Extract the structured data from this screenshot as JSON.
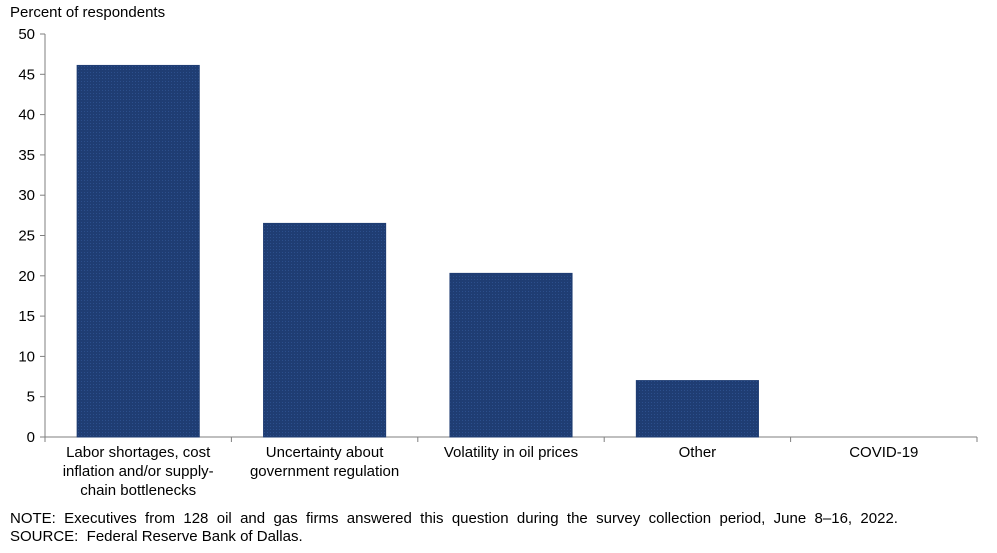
{
  "chart_data": {
    "type": "bar",
    "ylabel": "Percent of respondents",
    "categories": [
      [
        "Labor shortages, cost",
        "inflation and/or supply-",
        "chain bottlenecks"
      ],
      [
        "Uncertainty about",
        "government regulation"
      ],
      [
        "Volatility in oil prices"
      ],
      [
        "Other"
      ],
      [
        "COVID-19"
      ]
    ],
    "values": [
      46.1,
      26.5,
      20.3,
      7.0,
      0.0
    ],
    "ylim": [
      0,
      50
    ],
    "yticks": [
      0,
      5,
      10,
      15,
      20,
      25,
      30,
      35,
      40,
      45,
      50
    ],
    "bar_color": "#1f3d73",
    "grid": false,
    "legend": "none"
  },
  "notes": {
    "note": "NOTE:  Executives  from  128  oil  and  gas  firms  answered  this  question  during  the  survey  collection  period,  June  8–16,  2022.",
    "source": "SOURCE:  Federal Reserve Bank of Dallas."
  }
}
